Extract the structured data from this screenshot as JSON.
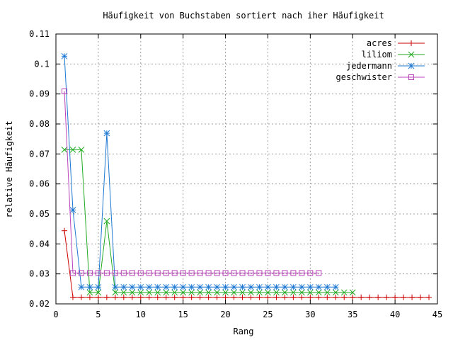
{
  "chart_data": {
    "type": "line",
    "title": "Häufigkeit von Buchstaben sortiert nach iher Häufigkeit",
    "xlabel": "Rang",
    "ylabel": "relative Häufigkeit",
    "xlim": [
      0,
      45
    ],
    "ylim": [
      0.02,
      0.11
    ],
    "xticks": [
      0,
      5,
      10,
      15,
      20,
      25,
      30,
      35,
      40,
      45
    ],
    "yticks": [
      0.02,
      0.03,
      0.04,
      0.05,
      0.06,
      0.07,
      0.08,
      0.09,
      0.1,
      0.11
    ],
    "xtick_labels": [
      "0",
      "5",
      "10",
      "15",
      "20",
      "25",
      "30",
      "35",
      "40",
      "45"
    ],
    "ytick_labels": [
      "0.02",
      "0.03",
      "0.04",
      "0.05",
      "0.06",
      "0.07",
      "0.08",
      "0.09",
      "0.1",
      "0.11"
    ],
    "grid": true,
    "legend_position": "top-right",
    "series": [
      {
        "name": "acres",
        "color": "#cc0000",
        "marker": "plus",
        "x": [
          1,
          2,
          3,
          4,
          5,
          6,
          7,
          8,
          9,
          10,
          11,
          12,
          13,
          14,
          15,
          16,
          17,
          18,
          19,
          20,
          21,
          22,
          23,
          24,
          25,
          26,
          27,
          28,
          29,
          30,
          31,
          32,
          33,
          34,
          35,
          36,
          37,
          38,
          39,
          40,
          41,
          42,
          43,
          44
        ],
        "y": [
          0.0444,
          0.0222,
          0.0222,
          0.0222,
          0.0222,
          0.0222,
          0.0222,
          0.0222,
          0.0222,
          0.0222,
          0.0222,
          0.0222,
          0.0222,
          0.0222,
          0.0222,
          0.0222,
          0.0222,
          0.0222,
          0.0222,
          0.0222,
          0.0222,
          0.0222,
          0.0222,
          0.0222,
          0.0222,
          0.0222,
          0.0222,
          0.0222,
          0.0222,
          0.0222,
          0.0222,
          0.0222,
          0.0222,
          0.0222,
          0.0222,
          0.0222,
          0.0222,
          0.0222,
          0.0222,
          0.0222,
          0.0222,
          0.0222,
          0.0222,
          0.0222
        ]
      },
      {
        "name": "liliom",
        "color": "#22aa22",
        "marker": "cross",
        "x": [
          1,
          2,
          3,
          4,
          5,
          6,
          7,
          8,
          9,
          10,
          11,
          12,
          13,
          14,
          15,
          16,
          17,
          18,
          19,
          20,
          21,
          22,
          23,
          24,
          25,
          26,
          27,
          28,
          29,
          30,
          31,
          32,
          33,
          34,
          35
        ],
        "y": [
          0.0714,
          0.0714,
          0.0714,
          0.0238,
          0.0238,
          0.0476,
          0.0238,
          0.0238,
          0.0238,
          0.0238,
          0.0238,
          0.0238,
          0.0238,
          0.0238,
          0.0238,
          0.0238,
          0.0238,
          0.0238,
          0.0238,
          0.0238,
          0.0238,
          0.0238,
          0.0238,
          0.0238,
          0.0238,
          0.0238,
          0.0238,
          0.0238,
          0.0238,
          0.0238,
          0.0238,
          0.0238,
          0.0238,
          0.0238,
          0.0238
        ]
      },
      {
        "name": "jedermann",
        "color": "#1e78d2",
        "marker": "star",
        "x": [
          1,
          2,
          3,
          4,
          5,
          6,
          7,
          8,
          9,
          10,
          11,
          12,
          13,
          14,
          15,
          16,
          17,
          18,
          19,
          20,
          21,
          22,
          23,
          24,
          25,
          26,
          27,
          28,
          29,
          30,
          31,
          32,
          33
        ],
        "y": [
          0.1026,
          0.0513,
          0.0256,
          0.0256,
          0.0256,
          0.0769,
          0.0256,
          0.0256,
          0.0256,
          0.0256,
          0.0256,
          0.0256,
          0.0256,
          0.0256,
          0.0256,
          0.0256,
          0.0256,
          0.0256,
          0.0256,
          0.0256,
          0.0256,
          0.0256,
          0.0256,
          0.0256,
          0.0256,
          0.0256,
          0.0256,
          0.0256,
          0.0256,
          0.0256,
          0.0256,
          0.0256,
          0.0256
        ]
      },
      {
        "name": "geschwister",
        "color": "#bb44bb",
        "marker": "square",
        "x": [
          1,
          2,
          3,
          4,
          5,
          6,
          7,
          8,
          9,
          10,
          11,
          12,
          13,
          14,
          15,
          16,
          17,
          18,
          19,
          20,
          21,
          22,
          23,
          24,
          25,
          26,
          27,
          28,
          29,
          30,
          31
        ],
        "y": [
          0.0909,
          0.0303,
          0.0303,
          0.0303,
          0.0303,
          0.0303,
          0.0303,
          0.0303,
          0.0303,
          0.0303,
          0.0303,
          0.0303,
          0.0303,
          0.0303,
          0.0303,
          0.0303,
          0.0303,
          0.0303,
          0.0303,
          0.0303,
          0.0303,
          0.0303,
          0.0303,
          0.0303,
          0.0303,
          0.0303,
          0.0303,
          0.0303,
          0.0303,
          0.0303,
          0.0303
        ]
      }
    ]
  }
}
